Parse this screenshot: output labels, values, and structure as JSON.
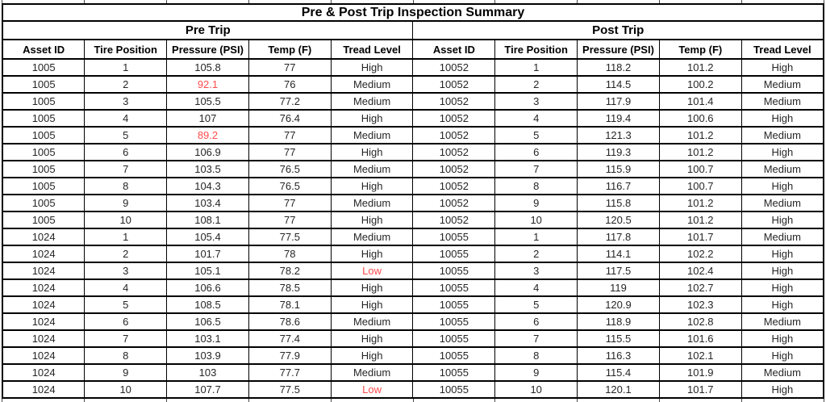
{
  "title": "Pre & Post Trip Inspection Summary",
  "colors": {
    "alert_text": "#ff4c4c",
    "border": "#000000",
    "data_text": "#262626"
  },
  "chart_data": [
    {
      "type": "table",
      "title": "Pre Trip",
      "columns": [
        "Asset ID",
        "Tire Position",
        "Pressure (PSI)",
        "Temp (F)",
        "Tread Level"
      ],
      "rows": [
        [
          1005,
          1,
          105.8,
          77,
          "High"
        ],
        [
          1005,
          2,
          92.1,
          76,
          "Medium"
        ],
        [
          1005,
          3,
          105.5,
          77.2,
          "Medium"
        ],
        [
          1005,
          4,
          107,
          76.4,
          "High"
        ],
        [
          1005,
          5,
          89.2,
          77,
          "Medium"
        ],
        [
          1005,
          6,
          106.9,
          77,
          "High"
        ],
        [
          1005,
          7,
          103.5,
          76.5,
          "Medium"
        ],
        [
          1005,
          8,
          104.3,
          76.5,
          "High"
        ],
        [
          1005,
          9,
          103.4,
          77,
          "Medium"
        ],
        [
          1005,
          10,
          108.1,
          77,
          "High"
        ],
        [
          1024,
          1,
          105.4,
          77.5,
          "Medium"
        ],
        [
          1024,
          2,
          101.7,
          78,
          "High"
        ],
        [
          1024,
          3,
          105.1,
          78.2,
          "Low"
        ],
        [
          1024,
          4,
          106.6,
          78.5,
          "High"
        ],
        [
          1024,
          5,
          108.5,
          78.1,
          "High"
        ],
        [
          1024,
          6,
          106.5,
          78.6,
          "Medium"
        ],
        [
          1024,
          7,
          103.1,
          77.4,
          "High"
        ],
        [
          1024,
          8,
          103.9,
          77.9,
          "High"
        ],
        [
          1024,
          9,
          103,
          77.7,
          "Medium"
        ],
        [
          1024,
          10,
          107.7,
          77.5,
          "Low"
        ]
      ],
      "red_cells": [
        [
          1,
          2
        ],
        [
          4,
          2
        ],
        [
          12,
          4
        ],
        [
          19,
          4
        ]
      ]
    },
    {
      "type": "table",
      "title": "Post Trip",
      "columns": [
        "Asset ID",
        "Tire Position",
        "Pressure (PSI)",
        "Temp (F)",
        "Tread Level"
      ],
      "rows": [
        [
          10052,
          1,
          118.2,
          101.2,
          "High"
        ],
        [
          10052,
          2,
          114.5,
          100.2,
          "Medium"
        ],
        [
          10052,
          3,
          117.9,
          101.4,
          "Medium"
        ],
        [
          10052,
          4,
          119.4,
          100.6,
          "High"
        ],
        [
          10052,
          5,
          121.3,
          101.2,
          "Medium"
        ],
        [
          10052,
          6,
          119.3,
          101.2,
          "High"
        ],
        [
          10052,
          7,
          115.9,
          100.7,
          "Medium"
        ],
        [
          10052,
          8,
          116.7,
          100.7,
          "High"
        ],
        [
          10052,
          9,
          115.8,
          101.2,
          "Medium"
        ],
        [
          10052,
          10,
          120.5,
          101.2,
          "High"
        ],
        [
          10055,
          1,
          117.8,
          101.7,
          "Medium"
        ],
        [
          10055,
          2,
          114.1,
          102.2,
          "High"
        ],
        [
          10055,
          3,
          117.5,
          102.4,
          "High"
        ],
        [
          10055,
          4,
          119,
          102.7,
          "High"
        ],
        [
          10055,
          5,
          120.9,
          102.3,
          "High"
        ],
        [
          10055,
          6,
          118.9,
          102.8,
          "Medium"
        ],
        [
          10055,
          7,
          115.5,
          101.6,
          "High"
        ],
        [
          10055,
          8,
          116.3,
          102.1,
          "High"
        ],
        [
          10055,
          9,
          115.4,
          101.9,
          "Medium"
        ],
        [
          10055,
          10,
          120.1,
          101.7,
          "High"
        ]
      ],
      "red_cells": []
    }
  ]
}
